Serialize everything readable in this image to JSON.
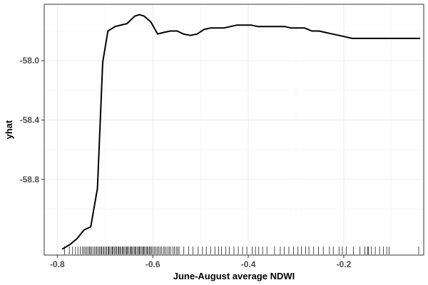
{
  "chart_data": {
    "type": "line",
    "xlabel": "June-August average NDWI",
    "ylabel": "yhat",
    "xlim": [
      -0.8275,
      -0.0325
    ],
    "ylim": [
      -59.31,
      -57.62
    ],
    "xticks": [
      -0.8,
      -0.6,
      -0.4,
      -0.2
    ],
    "xtick_labels": [
      "-0.8",
      "-0.6",
      "-0.4",
      "-0.2"
    ],
    "yticks": [
      -58.0,
      -58.4,
      -58.8
    ],
    "ytick_labels": [
      "-58.0",
      "-58.4",
      "-58.8"
    ],
    "grid": true,
    "series": [
      {
        "x": [
          -0.79,
          -0.774,
          -0.759,
          -0.744,
          -0.73,
          -0.716,
          -0.705,
          -0.694,
          -0.679,
          -0.654,
          -0.638,
          -0.628,
          -0.618,
          -0.604,
          -0.59,
          -0.578,
          -0.563,
          -0.549,
          -0.536,
          -0.521,
          -0.507,
          -0.493,
          -0.479,
          -0.466,
          -0.451,
          -0.437,
          -0.424,
          -0.409,
          -0.394,
          -0.38,
          -0.366,
          -0.351,
          -0.338,
          -0.324,
          -0.31,
          -0.295,
          -0.282,
          -0.267,
          -0.252,
          -0.238,
          -0.224,
          -0.21,
          -0.196,
          -0.182,
          -0.168,
          -0.154,
          -0.14,
          -0.125,
          -0.111,
          -0.096,
          -0.083,
          -0.068,
          -0.054,
          -0.04
        ],
        "y": [
          -59.27,
          -59.24,
          -59.2,
          -59.14,
          -59.12,
          -58.86,
          -58.01,
          -57.8,
          -57.77,
          -57.75,
          -57.7,
          -57.69,
          -57.7,
          -57.74,
          -57.82,
          -57.81,
          -57.8,
          -57.8,
          -57.82,
          -57.83,
          -57.82,
          -57.79,
          -57.78,
          -57.78,
          -57.78,
          -57.77,
          -57.76,
          -57.76,
          -57.76,
          -57.77,
          -57.77,
          -57.77,
          -57.77,
          -57.77,
          -57.78,
          -57.78,
          -57.78,
          -57.8,
          -57.8,
          -57.81,
          -57.82,
          -57.83,
          -57.84,
          -57.85,
          -57.85,
          -57.85,
          -57.85,
          -57.85,
          -57.85,
          -57.85,
          -57.85,
          -57.85,
          -57.85,
          -57.85
        ]
      }
    ],
    "rug": [
      -0.785,
      -0.775,
      -0.768,
      -0.762,
      -0.757,
      -0.752,
      -0.748,
      -0.745,
      -0.742,
      -0.739,
      -0.736,
      -0.733,
      -0.731,
      -0.728,
      -0.725,
      -0.722,
      -0.719,
      -0.717,
      -0.714,
      -0.712,
      -0.709,
      -0.707,
      -0.704,
      -0.702,
      -0.699,
      -0.697,
      -0.694,
      -0.692,
      -0.69,
      -0.687,
      -0.685,
      -0.683,
      -0.68,
      -0.678,
      -0.676,
      -0.673,
      -0.671,
      -0.669,
      -0.667,
      -0.664,
      -0.662,
      -0.66,
      -0.657,
      -0.655,
      -0.653,
      -0.651,
      -0.648,
      -0.646,
      -0.644,
      -0.642,
      -0.639,
      -0.637,
      -0.635,
      -0.632,
      -0.63,
      -0.628,
      -0.626,
      -0.623,
      -0.621,
      -0.619,
      -0.617,
      -0.614,
      -0.612,
      -0.61,
      -0.607,
      -0.605,
      -0.603,
      -0.6,
      -0.597,
      -0.594,
      -0.591,
      -0.588,
      -0.585,
      -0.582,
      -0.578,
      -0.575,
      -0.572,
      -0.568,
      -0.565,
      -0.562,
      -0.558,
      -0.555,
      -0.551,
      -0.548,
      -0.545,
      -0.535,
      -0.525,
      -0.516,
      -0.505,
      -0.496,
      -0.488,
      -0.479,
      -0.47,
      -0.462,
      -0.456,
      -0.447,
      -0.44,
      -0.43,
      -0.421,
      -0.412,
      -0.403,
      -0.392,
      -0.385,
      -0.378,
      -0.37,
      -0.361,
      -0.345,
      -0.333,
      -0.325,
      -0.315,
      -0.305,
      -0.296,
      -0.289,
      -0.28,
      -0.273,
      -0.263,
      -0.253,
      -0.243,
      -0.23,
      -0.222,
      -0.21,
      -0.203,
      -0.195,
      -0.18,
      -0.166,
      -0.156,
      -0.15,
      -0.148,
      -0.142,
      -0.134,
      -0.125,
      -0.117,
      -0.11,
      -0.105,
      -0.043
    ]
  }
}
